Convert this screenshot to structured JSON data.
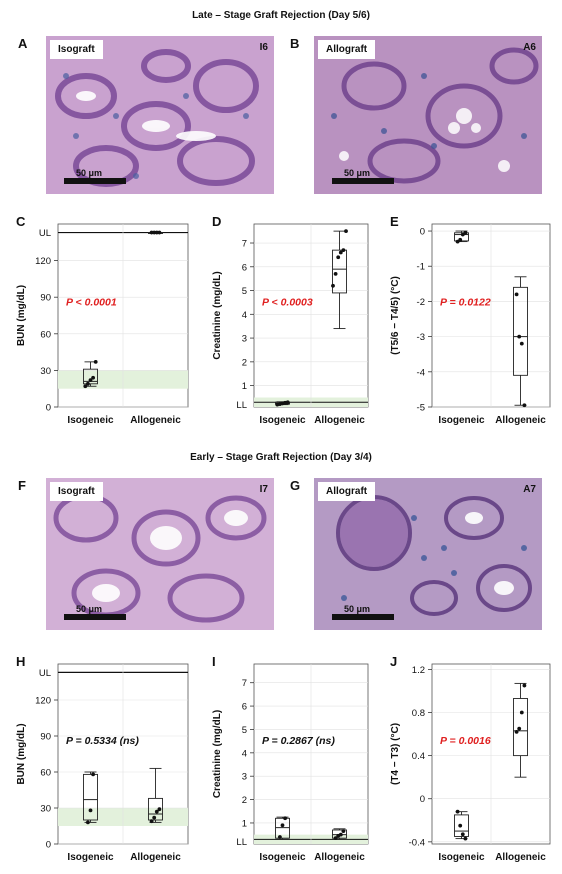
{
  "sections": {
    "late_title": "Late – Stage Graft Rejection (Day 5/6)",
    "early_title": "Early – Stage Graft Rejection (Day 3/4)"
  },
  "panels": {
    "A": {
      "letter": "A",
      "tag": "Isograft",
      "corner": "I6",
      "scale": "50 μm"
    },
    "B": {
      "letter": "B",
      "tag": "Allograft",
      "corner": "A6",
      "scale": "50 μm"
    },
    "F": {
      "letter": "F",
      "tag": "Isograft",
      "corner": "I7",
      "scale": "50 μm"
    },
    "G": {
      "letter": "G",
      "tag": "Allograft",
      "corner": "A7",
      "scale": "50 μm"
    }
  },
  "colors": {
    "pvalue": "#e02020",
    "band": "#e3f1dc",
    "pink": "#c9a2cf",
    "purple": "#7b4a98"
  },
  "chart_data": [
    {
      "id": "C",
      "letter": "C",
      "type": "box",
      "ylabel": "BUN (mg/dL)",
      "categories": [
        "Isogeneic",
        "Allogeneic"
      ],
      "yticks": [
        "0",
        "30",
        "60",
        "90",
        "120"
      ],
      "top_label": "UL",
      "bottom_label": "",
      "ylim": [
        0,
        150
      ],
      "ul": 143,
      "band": [
        15,
        30
      ],
      "pvalue": "P < 0.0001",
      "pvalue_color": "red",
      "groups": [
        {
          "min": 17,
          "q1": 19,
          "median": 21,
          "q3": 31,
          "max": 37,
          "points": [
            17,
            19,
            22,
            24,
            37
          ]
        },
        {
          "min": 143,
          "q1": 143,
          "median": 143,
          "q3": 143,
          "max": 143,
          "points": [
            143,
            143,
            143,
            143
          ]
        }
      ]
    },
    {
      "id": "D",
      "letter": "D",
      "type": "box",
      "ylabel": "Creatinine (mg/dL)",
      "categories": [
        "Isogeneic",
        "Allogeneic"
      ],
      "yticks": [
        "1",
        "2",
        "3",
        "4",
        "5",
        "6",
        "7"
      ],
      "top_label": "",
      "bottom_label": "LL",
      "ylim": [
        0.1,
        7.8
      ],
      "ll": 0.3,
      "band": [
        0.1,
        0.5
      ],
      "pvalue": "P < 0.0003",
      "pvalue_color": "red",
      "groups": [
        {
          "min": 0.2,
          "q1": 0.22,
          "median": 0.25,
          "q3": 0.3,
          "max": 0.32,
          "points": [
            0.2,
            0.22,
            0.25,
            0.28,
            0.3
          ]
        },
        {
          "min": 3.4,
          "q1": 4.9,
          "median": 5.9,
          "q3": 6.7,
          "max": 7.5,
          "points": [
            5.2,
            5.7,
            6.4,
            6.6,
            6.7,
            7.5
          ]
        }
      ]
    },
    {
      "id": "E",
      "letter": "E",
      "type": "box",
      "ylabel": "(T5/6 − T4/5) (°C)",
      "categories": [
        "Isogeneic",
        "Allogeneic"
      ],
      "yticks": [
        "-5",
        "-4",
        "-3",
        "-2",
        "-1",
        "0"
      ],
      "top_label": "",
      "bottom_label": "",
      "ylim": [
        -5,
        0.2
      ],
      "pvalue": "P = 0.0122",
      "pvalue_color": "red",
      "groups": [
        {
          "min": -0.3,
          "q1": -0.28,
          "median": -0.1,
          "q3": -0.05,
          "max": 0,
          "points": [
            -0.3,
            -0.25,
            -0.1,
            -0.05
          ]
        },
        {
          "min": -4.95,
          "q1": -4.1,
          "median": -3,
          "q3": -1.6,
          "max": -1.3,
          "points": [
            -1.8,
            -3.0,
            -3.2,
            -4.95
          ]
        }
      ]
    },
    {
      "id": "H",
      "letter": "H",
      "type": "box",
      "ylabel": "BUN (mg/dL)",
      "categories": [
        "Isogeneic",
        "Allogeneic"
      ],
      "yticks": [
        "0",
        "30",
        "60",
        "90",
        "120"
      ],
      "top_label": "UL",
      "bottom_label": "",
      "ylim": [
        0,
        150
      ],
      "ul": 143,
      "band": [
        15,
        30
      ],
      "pvalue": "P = 0.5334 (ns)",
      "pvalue_color": "black",
      "groups": [
        {
          "min": 18,
          "q1": 20,
          "median": 37,
          "q3": 58,
          "max": 60,
          "points": [
            18,
            28,
            58
          ]
        },
        {
          "min": 18,
          "q1": 20,
          "median": 25,
          "q3": 38,
          "max": 63,
          "points": [
            19,
            22,
            27,
            29
          ]
        }
      ]
    },
    {
      "id": "I",
      "letter": "I",
      "type": "box",
      "ylabel": "Creatinine (mg/dL)",
      "categories": [
        "Isogeneic",
        "Allogeneic"
      ],
      "yticks": [
        "1",
        "2",
        "3",
        "4",
        "5",
        "6",
        "7"
      ],
      "top_label": "",
      "bottom_label": "LL",
      "ylim": [
        0.1,
        7.8
      ],
      "ll": 0.3,
      "band": [
        0.1,
        0.5
      ],
      "pvalue": "P = 0.2867 (ns)",
      "pvalue_color": "black",
      "groups": [
        {
          "min": 0.3,
          "q1": 0.35,
          "median": 0.8,
          "q3": 1.2,
          "max": 1.25,
          "points": [
            0.4,
            0.9,
            1.2
          ]
        },
        {
          "min": 0.3,
          "q1": 0.35,
          "median": 0.5,
          "q3": 0.7,
          "max": 0.75,
          "points": [
            0.35,
            0.45,
            0.5,
            0.65
          ]
        }
      ]
    },
    {
      "id": "J",
      "letter": "J",
      "type": "box",
      "ylabel": "(T4 − T3) (°C)",
      "categories": [
        "Isogeneic",
        "Allogeneic"
      ],
      "yticks": [
        "-0.4",
        "0",
        "0.4",
        "0.8",
        "1.2"
      ],
      "top_label": "",
      "bottom_label": "",
      "ylim": [
        -0.42,
        1.25
      ],
      "pvalue": "P = 0.0016",
      "pvalue_color": "red",
      "groups": [
        {
          "min": -0.37,
          "q1": -0.35,
          "median": -0.3,
          "q3": -0.15,
          "max": -0.12,
          "points": [
            -0.12,
            -0.25,
            -0.33,
            -0.37
          ]
        },
        {
          "min": 0.2,
          "q1": 0.4,
          "median": 0.63,
          "q3": 0.93,
          "max": 1.07,
          "points": [
            0.62,
            0.65,
            0.8,
            1.05
          ]
        }
      ]
    }
  ]
}
